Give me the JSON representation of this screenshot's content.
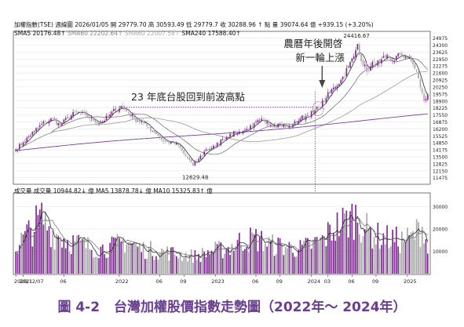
{
  "header": {
    "line1": "加權指數(TSE) 週線圖   2026/01/05  開 29779.70  高 30593.49  低 29779.7  收 30288.96 ↑  點   量 39074.64 億   +939.15 (+3.20%)",
    "line2_sma5": "SMA5 20176.48↑",
    "line2_sma60a": "SMA60 22202.64↑",
    "line2_sma60b": "SMA60 22007.58↑",
    "line2_sma240": "SMA240 17588.40↑",
    "vol_line": "成交量  成交量 10944.82↓ 億    MA5 13878.78↓ 億    MA10 15325.83↑ 億"
  },
  "caption": {
    "figure_no": "圖 4-2",
    "title": "台灣加權股價指數走勢圖（2022年～ 2024年）"
  },
  "colors": {
    "up": "#7b2d8e",
    "down": "#a8a8a8",
    "ma_short": "#2b2b2b",
    "ma_mid": "#9a9a9a",
    "ma_long": "#7a3ea0",
    "caption": "#6a3d91",
    "annotation_line": "#7b2d8e"
  },
  "chart_data": {
    "type": "candlestick",
    "title": "加權指數(TSE) 週線圖",
    "price_axis": {
      "side": "right",
      "ticks": [
        11475,
        12150,
        12825,
        13500,
        14175,
        14850,
        15525,
        16200,
        16875,
        17550,
        18225,
        18900,
        19575,
        20250,
        20925,
        21600,
        22275,
        22950,
        23625,
        24300,
        24975
      ],
      "ylim": [
        11000,
        25400
      ]
    },
    "volume_axis": {
      "side": "right",
      "ticks": [
        10000,
        20000,
        30000
      ],
      "ylim": [
        0,
        34000
      ]
    },
    "x_ticks": [
      {
        "label": "2020/12/07",
        "index": 0
      },
      {
        "label": "2021",
        "index": 4
      },
      {
        "label": "06",
        "index": 26
      },
      {
        "label": "2022",
        "index": 56
      },
      {
        "label": "06",
        "index": 78
      },
      {
        "label": "09",
        "index": 91
      },
      {
        "label": "2023",
        "index": 108
      },
      {
        "label": "06",
        "index": 130
      },
      {
        "label": "09",
        "index": 143
      },
      {
        "label": "2024",
        "index": 160
      },
      {
        "label": "03",
        "index": 169
      },
      {
        "label": "06",
        "index": 182
      },
      {
        "label": "09",
        "index": 195
      },
      {
        "label": "2025",
        "index": 212
      }
    ],
    "close_anchors": [
      [
        0,
        14200
      ],
      [
        4,
        14900
      ],
      [
        10,
        16000
      ],
      [
        16,
        16900
      ],
      [
        20,
        17200
      ],
      [
        24,
        16500
      ],
      [
        28,
        17300
      ],
      [
        33,
        17800
      ],
      [
        38,
        17500
      ],
      [
        42,
        17000
      ],
      [
        46,
        16800
      ],
      [
        50,
        17400
      ],
      [
        54,
        18100
      ],
      [
        57,
        18400
      ],
      [
        60,
        17900
      ],
      [
        64,
        17200
      ],
      [
        68,
        16900
      ],
      [
        72,
        16300
      ],
      [
        76,
        15800
      ],
      [
        80,
        15000
      ],
      [
        84,
        14900
      ],
      [
        88,
        14600
      ],
      [
        91,
        13800
      ],
      [
        94,
        13200
      ],
      [
        96,
        12629
      ],
      [
        99,
        13300
      ],
      [
        103,
        14200
      ],
      [
        108,
        14500
      ],
      [
        112,
        15200
      ],
      [
        116,
        15700
      ],
      [
        120,
        15800
      ],
      [
        124,
        16100
      ],
      [
        128,
        16400
      ],
      [
        132,
        17000
      ],
      [
        136,
        16900
      ],
      [
        140,
        16500
      ],
      [
        143,
        16700
      ],
      [
        147,
        16300
      ],
      [
        150,
        16600
      ],
      [
        154,
        17200
      ],
      [
        158,
        17500
      ],
      [
        161,
        17800
      ],
      [
        164,
        18300
      ],
      [
        168,
        19200
      ],
      [
        172,
        20200
      ],
      [
        176,
        20900
      ],
      [
        180,
        22200
      ],
      [
        183,
        23200
      ],
      [
        185,
        24416
      ],
      [
        188,
        22300
      ],
      [
        191,
        21800
      ],
      [
        194,
        22700
      ],
      [
        197,
        22500
      ],
      [
        200,
        23100
      ],
      [
        204,
        22800
      ],
      [
        208,
        23400
      ],
      [
        211,
        23200
      ],
      [
        214,
        22700
      ],
      [
        217,
        21800
      ],
      [
        219,
        20200
      ],
      [
        221,
        18900
      ],
      [
        223,
        19500
      ]
    ],
    "volume_anchors": [
      [
        0,
        13000
      ],
      [
        8,
        21000
      ],
      [
        14,
        27000
      ],
      [
        20,
        20000
      ],
      [
        28,
        16000
      ],
      [
        36,
        14000
      ],
      [
        44,
        12000
      ],
      [
        52,
        13000
      ],
      [
        60,
        16000
      ],
      [
        68,
        12000
      ],
      [
        76,
        11000
      ],
      [
        84,
        10000
      ],
      [
        92,
        9000
      ],
      [
        98,
        8500
      ],
      [
        106,
        11000
      ],
      [
        114,
        12000
      ],
      [
        122,
        16000
      ],
      [
        130,
        17000
      ],
      [
        138,
        14000
      ],
      [
        146,
        13000
      ],
      [
        154,
        12000
      ],
      [
        160,
        14000
      ],
      [
        166,
        16000
      ],
      [
        172,
        22000
      ],
      [
        178,
        25000
      ],
      [
        184,
        28000
      ],
      [
        190,
        21000
      ],
      [
        196,
        18000
      ],
      [
        202,
        17000
      ],
      [
        208,
        16000
      ],
      [
        214,
        17000
      ],
      [
        218,
        21000
      ],
      [
        221,
        23000
      ],
      [
        223,
        11000
      ]
    ],
    "annotations": [
      {
        "text": "23 年底台股回到前波高點",
        "x_index": 60,
        "y_value": 18700
      },
      {
        "text": "農曆年後開啓",
        "x_index": 165,
        "y_value": 24800
      },
      {
        "text": "新一輪上漲",
        "x_index": 165,
        "y_value": 23900
      },
      {
        "text": "24416.67",
        "x_index": 185,
        "y_value": 24416.67
      },
      {
        "text": "12629.48",
        "x_index": 96,
        "y_value": 12629.48
      }
    ],
    "prior_high_value": 18300,
    "breakout_index": 162
  }
}
